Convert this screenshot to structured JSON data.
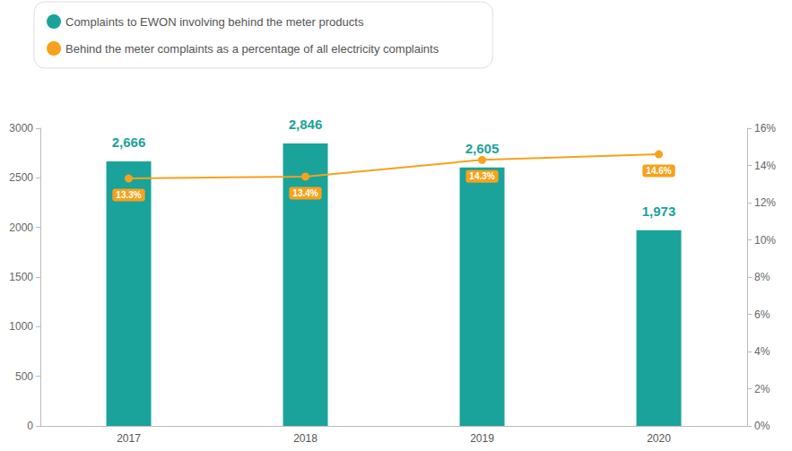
{
  "chart_data": {
    "type": "bar",
    "categories": [
      "2017",
      "2018",
      "2019",
      "2020"
    ],
    "series": [
      {
        "name": "Complaints to EWON involving behind the meter products",
        "type": "bar",
        "color": "#1aa39a",
        "values": [
          2666,
          2846,
          2605,
          1973
        ],
        "value_labels": [
          "2,666",
          "2,846",
          "2,605",
          "1,973"
        ]
      },
      {
        "name": "Behind the meter complaints as a percentage of all electricity complaints",
        "type": "line",
        "axis": "y2",
        "color": "#f7a21b",
        "marker": "circle",
        "values": [
          13.3,
          13.4,
          14.3,
          14.6
        ],
        "value_labels": [
          "13.3%",
          "13.4%",
          "14.3%",
          "14.6%"
        ]
      }
    ],
    "ylim": [
      0,
      3000
    ],
    "yticks": [
      0,
      500,
      1000,
      1500,
      2000,
      2500,
      3000
    ],
    "y2lim": [
      0,
      16
    ],
    "y2ticks": [
      {
        "value": 0,
        "label": "0%"
      },
      {
        "value": 2,
        "label": "2%"
      },
      {
        "value": 4,
        "label": "4%"
      },
      {
        "value": 6,
        "label": "6%"
      },
      {
        "value": 8,
        "label": "8%"
      },
      {
        "value": 10,
        "label": "10%"
      },
      {
        "value": 12,
        "label": "12%"
      },
      {
        "value": 14,
        "label": "14%"
      },
      {
        "value": 16,
        "label": "16%"
      }
    ],
    "grid": false,
    "legend": "top-left",
    "data_labels": true
  }
}
